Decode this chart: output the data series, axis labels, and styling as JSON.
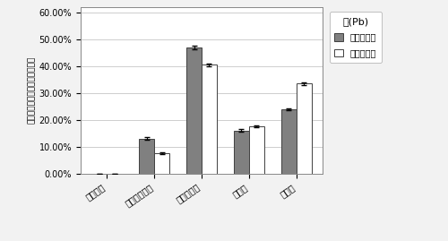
{
  "categories": [
    "可交换态",
    "碳酸盐结合态",
    "铁锰氧化态",
    "有机态",
    "残渣态"
  ],
  "before": [
    0.0,
    0.13,
    0.47,
    0.16,
    0.24
  ],
  "after": [
    0.0,
    0.075,
    0.405,
    0.175,
    0.335
  ],
  "before_errors": [
    0.0,
    0.005,
    0.007,
    0.005,
    0.004
  ],
  "after_errors": [
    0.0,
    0.004,
    0.006,
    0.004,
    0.005
  ],
  "bar_color_before": "#808080",
  "bar_color_after": "#ffffff",
  "bar_edge_before": "#404040",
  "bar_edge_after": "#404040",
  "ylim": [
    0.0,
    0.62
  ],
  "yticks": [
    0.0,
    0.1,
    0.2,
    0.3,
    0.4,
    0.5,
    0.6
  ],
  "ytick_labels": [
    "0.00%",
    "10.00%",
    "20.00%",
    "30.00%",
    "40.00%",
    "50.00%",
    "60.00%"
  ],
  "ylabel": "每一级占五种形态总和的百分比",
  "title_legend": "铅(Pb)",
  "legend_before": "样地熱之前",
  "legend_after": "样地熱之后",
  "background_color": "#f2f2f2",
  "plot_bg": "#ffffff"
}
